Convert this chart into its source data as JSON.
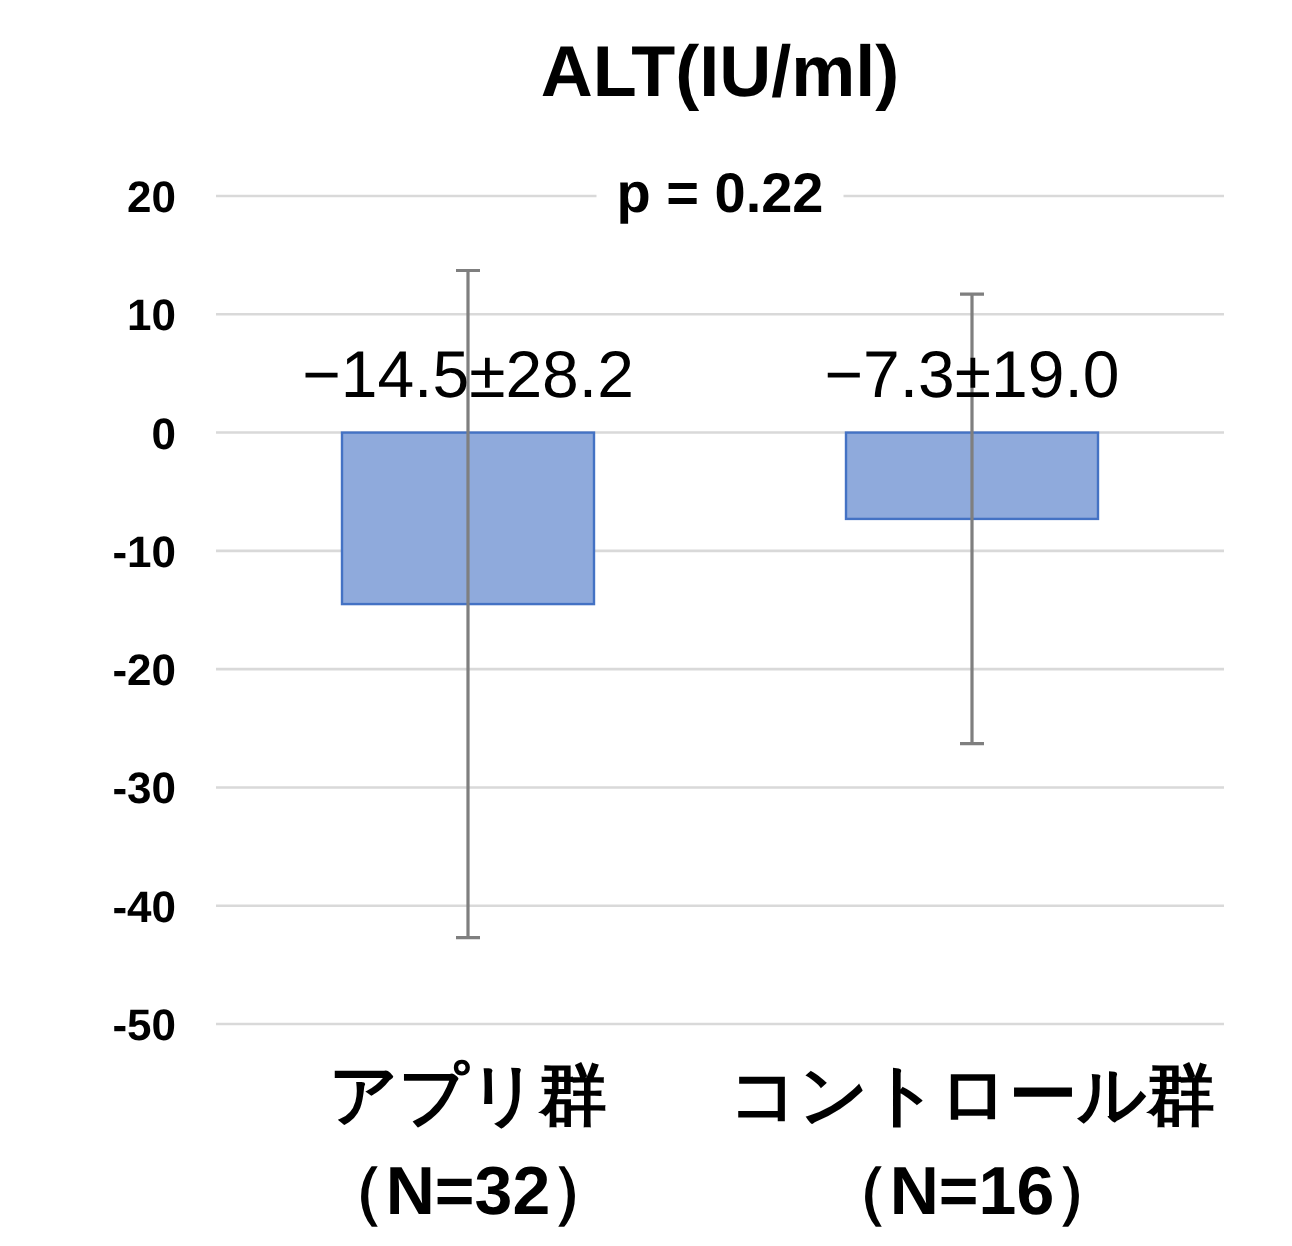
{
  "chart_data": {
    "type": "bar",
    "title": "ALT(IU/ml)",
    "subtitle": "p = 0.22",
    "categories": [
      "アプリ群（N=32）",
      "コントロール群（N=16）"
    ],
    "values": [
      -14.5,
      -7.3
    ],
    "errors": [
      28.2,
      19.0
    ],
    "value_labels": [
      "−14.5±28.2",
      "−7.3±19.0"
    ],
    "color": "#8faadc",
    "ylim": [
      -50,
      20
    ],
    "yticks": [
      -50,
      -40,
      -30,
      -20,
      -10,
      0,
      10,
      20
    ],
    "grid": "y"
  }
}
